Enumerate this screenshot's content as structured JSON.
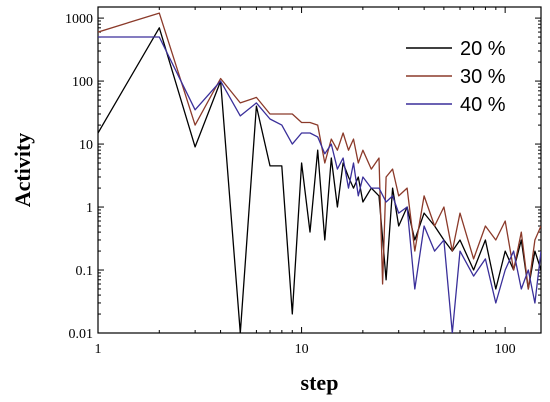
{
  "chart_data": {
    "type": "line",
    "xlabel": "step",
    "ylabel": "Activity",
    "xscale": "log",
    "yscale": "log",
    "xlim": [
      1,
      150
    ],
    "ylim": [
      0.01,
      1500
    ],
    "x_ticks": [
      {
        "value": 1,
        "label": "1"
      },
      {
        "value": 10,
        "label": "10"
      },
      {
        "value": 100,
        "label": "100"
      }
    ],
    "y_ticks": [
      {
        "value": 0.01,
        "label": "0.01"
      },
      {
        "value": 0.1,
        "label": "0.1"
      },
      {
        "value": 1,
        "label": "1"
      },
      {
        "value": 10,
        "label": "10"
      },
      {
        "value": 100,
        "label": "100"
      },
      {
        "value": 1000,
        "label": "1000"
      }
    ],
    "legend_position": "top-right",
    "grid": false,
    "series": [
      {
        "name": "20 %",
        "color": "#000000",
        "x": [
          1,
          2,
          3,
          4,
          5,
          6,
          7,
          8,
          9,
          10,
          11,
          12,
          13,
          14,
          15,
          16,
          17,
          18,
          19,
          20,
          22,
          24,
          26,
          28,
          30,
          33,
          36,
          40,
          45,
          50,
          55,
          60,
          70,
          80,
          90,
          100,
          110,
          120,
          130,
          140,
          150
        ],
        "y": [
          15,
          700,
          9,
          100,
          0.01,
          40,
          4.5,
          4.5,
          0.02,
          5,
          0.4,
          8,
          0.3,
          6,
          1,
          5,
          3,
          2,
          3,
          1.2,
          2,
          1.5,
          0.07,
          2,
          0.5,
          1,
          0.3,
          0.8,
          0.5,
          0.3,
          0.2,
          0.3,
          0.1,
          0.3,
          0.05,
          0.2,
          0.1,
          0.3,
          0.05,
          0.2,
          0.1
        ]
      },
      {
        "name": "30 %",
        "color": "#8b3a2a",
        "x": [
          1,
          2,
          3,
          4,
          5,
          6,
          7,
          8,
          9,
          10,
          11,
          12,
          13,
          14,
          15,
          16,
          17,
          18,
          19,
          20,
          22,
          24,
          25,
          26,
          28,
          30,
          33,
          36,
          40,
          45,
          50,
          55,
          60,
          70,
          80,
          90,
          100,
          110,
          120,
          130,
          140,
          150
        ],
        "y": [
          600,
          1200,
          20,
          110,
          45,
          55,
          30,
          30,
          30,
          22,
          22,
          20,
          5,
          12,
          8,
          15,
          8,
          12,
          5,
          8,
          4,
          6,
          0.06,
          3,
          4,
          1.5,
          2,
          0.2,
          1.5,
          0.5,
          1,
          0.2,
          0.8,
          0.15,
          0.5,
          0.3,
          0.6,
          0.1,
          0.4,
          0.05,
          0.3,
          0.5
        ]
      },
      {
        "name": "40 %",
        "color": "#3a2f9a",
        "x": [
          1,
          2,
          3,
          4,
          5,
          6,
          7,
          8,
          9,
          10,
          11,
          12,
          13,
          14,
          15,
          16,
          17,
          18,
          19,
          20,
          22,
          24,
          26,
          28,
          30,
          33,
          36,
          40,
          45,
          50,
          55,
          60,
          70,
          80,
          90,
          100,
          110,
          120,
          130,
          140,
          150
        ],
        "y": [
          500,
          500,
          35,
          100,
          28,
          45,
          25,
          20,
          10,
          15,
          15,
          13,
          7,
          10,
          4,
          6,
          2,
          5,
          1.5,
          3,
          2,
          2,
          1.2,
          1.5,
          0.8,
          1,
          0.05,
          0.5,
          0.2,
          0.3,
          0.01,
          0.2,
          0.08,
          0.15,
          0.03,
          0.1,
          0.2,
          0.05,
          0.1,
          0.03,
          0.2
        ]
      }
    ]
  }
}
